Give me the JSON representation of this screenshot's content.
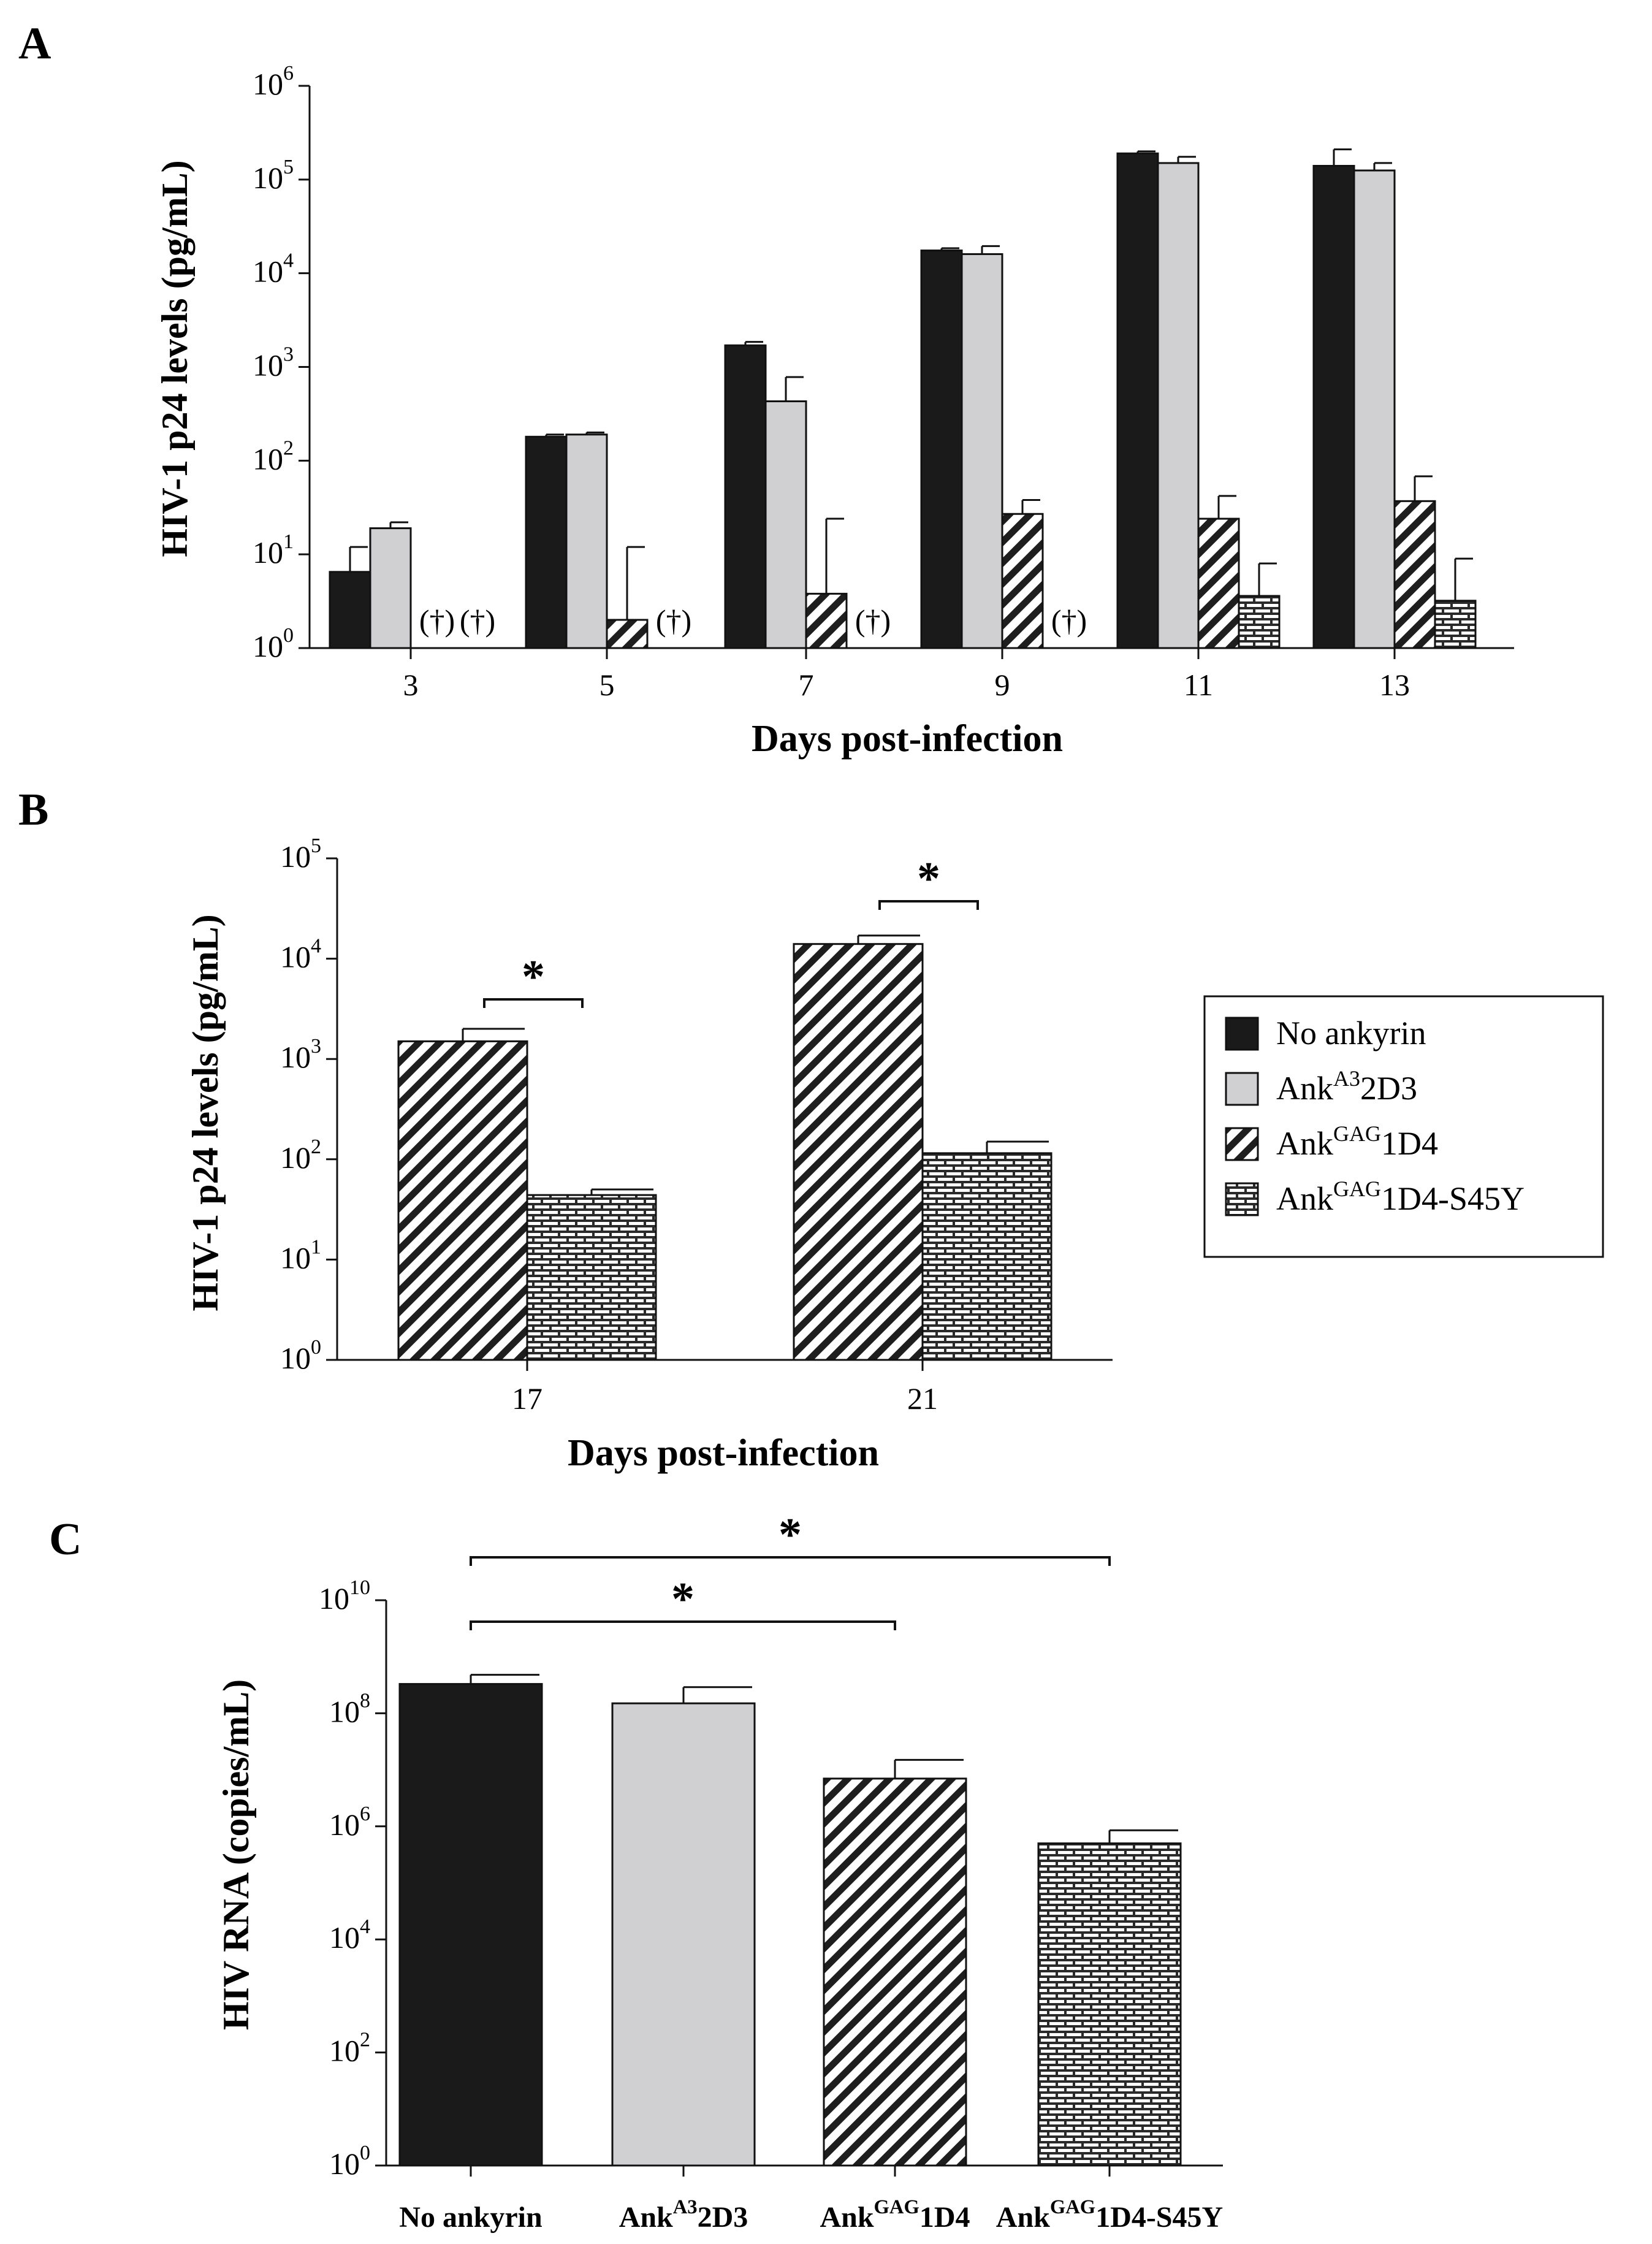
{
  "figure": {
    "colors": {
      "no_ankyrin": "#1a1a1a",
      "ank_a3": "#d0d0d2",
      "ank_gag": "#2a2a2a",
      "ank_gag_s45y": "#2a2a2a",
      "axis": "#111111"
    }
  },
  "legend": {
    "entries": [
      {
        "key": "no_ankyrin",
        "label": "No ankyrin",
        "base": "No ankyrin",
        "sup": "",
        "suffix": ""
      },
      {
        "key": "ank_a3",
        "label": "AnkA32D3",
        "base": "Ank",
        "sup": "A3",
        "suffix": "2D3"
      },
      {
        "key": "ank_gag",
        "label": "AnkGAG1D4",
        "base": "Ank",
        "sup": "GAG",
        "suffix": "1D4"
      },
      {
        "key": "ank_gag_s45y",
        "label": "AnkGAG1D4-S45Y",
        "base": "Ank",
        "sup": "GAG",
        "suffix": "1D4-S45Y"
      }
    ]
  },
  "chart_data": [
    {
      "panel": "A",
      "type": "bar",
      "scale": "log10",
      "ylim": [
        1,
        1000000
      ],
      "ytick_exponents": [
        0,
        1,
        2,
        3,
        4,
        5,
        6
      ],
      "ylabel": "HIV-1 p24 levels (pg/mL)",
      "xlabel": "Days post-infection",
      "categories": [
        "3",
        "5",
        "7",
        "9",
        "11",
        "13"
      ],
      "series": [
        {
          "key": "no_ankyrin",
          "name": "No ankyrin",
          "values": [
            6.5,
            180,
            1700,
            17500,
            190000,
            140000
          ],
          "errors": [
            12,
            190,
            1850,
            18500,
            200000,
            210000
          ]
        },
        {
          "key": "ank_a3",
          "name": "AnkA32D3",
          "values": [
            19,
            190,
            430,
            16000,
            150000,
            125000
          ],
          "errors": [
            22,
            200,
            780,
            19500,
            175000,
            150000
          ]
        },
        {
          "key": "ank_gag",
          "name": "AnkGAG1D4",
          "values": [
            null,
            2.0,
            3.8,
            27,
            24,
            37
          ],
          "errors": [
            null,
            12,
            24,
            38,
            42,
            68
          ]
        },
        {
          "key": "ank_gag_s45y",
          "name": "AnkGAG1D4-S45Y",
          "values": [
            null,
            null,
            null,
            null,
            3.6,
            3.2
          ],
          "errors": [
            null,
            null,
            null,
            null,
            8,
            9
          ]
        }
      ],
      "annotations": [
        {
          "category": "3",
          "series_index": 2,
          "text": "(†)"
        },
        {
          "category": "3",
          "series_index": 3,
          "text": "(†)"
        },
        {
          "category": "5",
          "series_index": 3,
          "text": "(†)"
        },
        {
          "category": "7",
          "series_index": 3,
          "text": "(†)"
        },
        {
          "category": "9",
          "series_index": 3,
          "text": "(†)"
        }
      ]
    },
    {
      "panel": "B",
      "type": "bar",
      "scale": "log10",
      "ylim": [
        1,
        100000
      ],
      "ytick_exponents": [
        0,
        1,
        2,
        3,
        4,
        5
      ],
      "ylabel": "HIV-1 p24 levels (pg/mL)",
      "xlabel": "Days post-infection",
      "categories": [
        "17",
        "21"
      ],
      "series": [
        {
          "key": "ank_gag",
          "name": "AnkGAG1D4",
          "values": [
            1500,
            14000
          ],
          "errors": [
            2000,
            17000
          ]
        },
        {
          "key": "ank_gag_s45y",
          "name": "AnkGAG1D4-S45Y",
          "values": [
            44,
            115
          ],
          "errors": [
            50,
            150
          ]
        }
      ],
      "significance": [
        {
          "category": "17",
          "text": "*"
        },
        {
          "category": "21",
          "text": "*"
        }
      ]
    },
    {
      "panel": "C",
      "type": "bar",
      "scale": "log10",
      "ylim": [
        1,
        10000000000
      ],
      "ytick_exponents": [
        0,
        2,
        4,
        6,
        8,
        10
      ],
      "ylabel": "HIV RNA (copies/mL)",
      "xlabel": "",
      "categories": [
        "No ankyrin",
        "AnkA32D3",
        "AnkGAG1D4",
        "AnkGAG1D4-S45Y"
      ],
      "series": [
        {
          "name": "HIV RNA",
          "keys": [
            "no_ankyrin",
            "ank_a3",
            "ank_gag",
            "ank_gag_s45y"
          ],
          "values": [
            330000000,
            150000000,
            7000000,
            500000
          ],
          "errors": [
            480000000,
            290000000,
            15000000,
            850000
          ]
        }
      ],
      "significance": [
        {
          "from": "No ankyrin",
          "to": "AnkGAG1D4",
          "text": "*"
        },
        {
          "from": "No ankyrin",
          "to": "AnkGAG1D4-S45Y",
          "text": "*"
        }
      ]
    }
  ]
}
